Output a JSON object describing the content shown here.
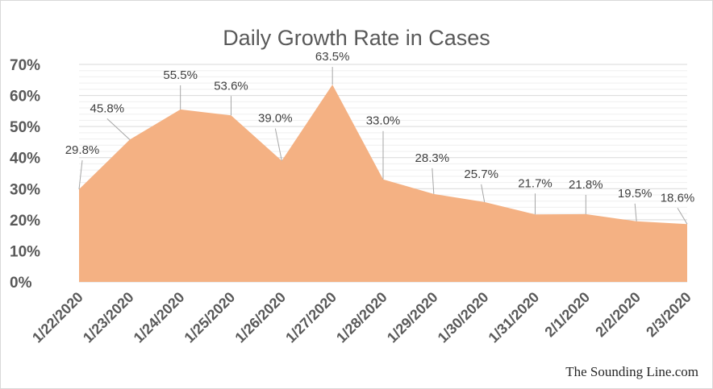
{
  "chart_data": {
    "type": "area",
    "title": "Daily Growth Rate in Cases",
    "xlabel": "",
    "ylabel": "",
    "categories": [
      "1/22/2020",
      "1/23/2020",
      "1/24/2020",
      "1/25/2020",
      "1/26/2020",
      "1/27/2020",
      "1/28/2020",
      "1/29/2020",
      "1/30/2020",
      "1/31/2020",
      "2/1/2020",
      "2/2/2020",
      "2/3/2020"
    ],
    "values": [
      29.8,
      45.8,
      55.5,
      53.6,
      39.0,
      63.5,
      33.0,
      28.3,
      25.7,
      21.7,
      21.8,
      19.5,
      18.6
    ],
    "data_labels": [
      "29.8%",
      "45.8%",
      "55.5%",
      "53.6%",
      "39.0%",
      "63.5%",
      "33.0%",
      "28.3%",
      "25.7%",
      "21.7%",
      "21.8%",
      "19.5%",
      "18.6%"
    ],
    "y_ticks": [
      "0%",
      "10%",
      "20%",
      "30%",
      "40%",
      "50%",
      "60%",
      "70%"
    ],
    "ylim": [
      0,
      70
    ],
    "grid": true,
    "fill_color": "#f4b183",
    "grid_color": "#d9d9d9"
  },
  "credit": "The Sounding Line.com"
}
